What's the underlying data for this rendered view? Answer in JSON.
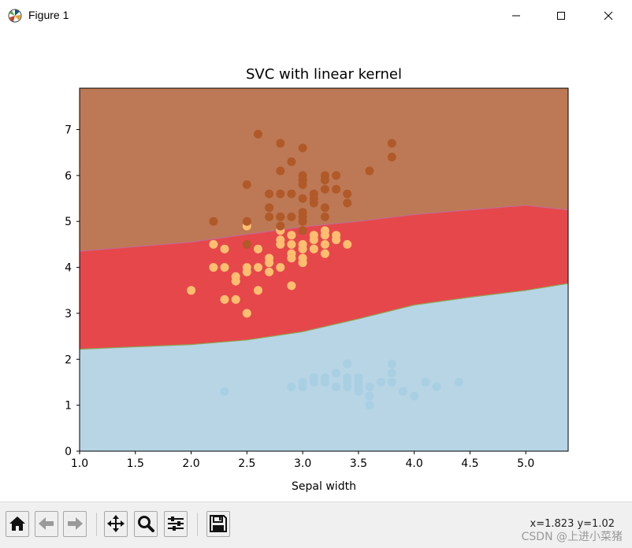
{
  "window": {
    "title": "Figure 1",
    "controls": [
      "minimize",
      "maximize",
      "close"
    ]
  },
  "toolbar": {
    "buttons": [
      {
        "name": "home",
        "icon": "home-icon"
      },
      {
        "name": "back",
        "icon": "arrow-left-icon"
      },
      {
        "name": "forward",
        "icon": "arrow-right-icon"
      },
      {
        "name": "pan",
        "icon": "move-icon"
      },
      {
        "name": "zoom",
        "icon": "magnifier-icon"
      },
      {
        "name": "configure-subplots",
        "icon": "sliders-icon"
      },
      {
        "name": "save",
        "icon": "floppy-disk-icon"
      }
    ],
    "coords": "x=1.823 y=1.02",
    "watermark": "CSDN @上进小菜猪"
  },
  "chart_data": {
    "type": "scatter",
    "title": "SVC with linear kernel",
    "xlabel": "Sepal width",
    "ylabel": "",
    "xlim": [
      1.0,
      5.38
    ],
    "ylim": [
      0,
      7.9
    ],
    "xticks": [
      "1.0",
      "1.5",
      "2.0",
      "2.5",
      "3.0",
      "3.5",
      "4.0",
      "4.5",
      "5.0"
    ],
    "yticks": [
      "0",
      "1",
      "2",
      "3",
      "4",
      "5",
      "6",
      "7"
    ],
    "regions": [
      {
        "name": "class-0-region",
        "color": "#b7d5e5"
      },
      {
        "name": "class-1-region",
        "color": "#e6474b"
      },
      {
        "name": "class-2-region",
        "color": "#bd7955"
      }
    ],
    "boundaries": {
      "lower": [
        [
          1.0,
          2.22
        ],
        [
          1.5,
          2.27
        ],
        [
          2.0,
          2.32
        ],
        [
          2.5,
          2.42
        ],
        [
          3.0,
          2.6
        ],
        [
          3.5,
          2.88
        ],
        [
          4.0,
          3.18
        ],
        [
          4.5,
          3.35
        ],
        [
          5.0,
          3.5
        ],
        [
          5.38,
          3.65
        ]
      ],
      "upper": [
        [
          1.0,
          4.35
        ],
        [
          1.5,
          4.45
        ],
        [
          2.0,
          4.55
        ],
        [
          2.5,
          4.72
        ],
        [
          3.0,
          4.88
        ],
        [
          3.5,
          5.0
        ],
        [
          4.0,
          5.15
        ],
        [
          4.5,
          5.25
        ],
        [
          5.0,
          5.35
        ],
        [
          5.38,
          5.25
        ]
      ]
    },
    "series": [
      {
        "name": "class-0",
        "color": "#a9cfe3",
        "points": [
          [
            2.3,
            1.3
          ],
          [
            2.9,
            1.4
          ],
          [
            3.0,
            1.4
          ],
          [
            3.0,
            1.5
          ],
          [
            3.1,
            1.5
          ],
          [
            3.1,
            1.6
          ],
          [
            3.2,
            1.6
          ],
          [
            3.2,
            1.5
          ],
          [
            3.3,
            1.4
          ],
          [
            3.3,
            1.7
          ],
          [
            3.4,
            1.5
          ],
          [
            3.4,
            1.6
          ],
          [
            3.4,
            1.4
          ],
          [
            3.5,
            1.3
          ],
          [
            3.5,
            1.5
          ],
          [
            3.5,
            1.4
          ],
          [
            3.6,
            1.4
          ],
          [
            3.6,
            1.2
          ],
          [
            3.7,
            1.5
          ],
          [
            3.8,
            1.5
          ],
          [
            3.8,
            1.7
          ],
          [
            3.9,
            1.3
          ],
          [
            4.0,
            1.2
          ],
          [
            4.1,
            1.5
          ],
          [
            4.2,
            1.4
          ],
          [
            4.4,
            1.5
          ],
          [
            3.6,
            1.0
          ],
          [
            3.5,
            1.6
          ],
          [
            3.7,
            1.5
          ],
          [
            3.8,
            1.9
          ],
          [
            3.4,
            1.9
          ],
          [
            3.1,
            1.5
          ]
        ]
      },
      {
        "name": "class-1",
        "color": "#fdbf6f",
        "points": [
          [
            2.0,
            3.5
          ],
          [
            2.2,
            4.0
          ],
          [
            2.2,
            4.5
          ],
          [
            2.3,
            3.3
          ],
          [
            2.3,
            4.0
          ],
          [
            2.3,
            4.4
          ],
          [
            2.4,
            3.3
          ],
          [
            2.4,
            3.7
          ],
          [
            2.4,
            3.8
          ],
          [
            2.5,
            3.0
          ],
          [
            2.5,
            3.9
          ],
          [
            2.5,
            4.0
          ],
          [
            2.5,
            4.9
          ],
          [
            2.6,
            3.5
          ],
          [
            2.6,
            4.0
          ],
          [
            2.6,
            4.4
          ],
          [
            2.7,
            3.9
          ],
          [
            2.7,
            4.1
          ],
          [
            2.7,
            4.2
          ],
          [
            2.8,
            4.0
          ],
          [
            2.8,
            4.5
          ],
          [
            2.8,
            4.6
          ],
          [
            2.8,
            4.8
          ],
          [
            2.9,
            3.6
          ],
          [
            2.9,
            4.2
          ],
          [
            2.9,
            4.3
          ],
          [
            2.9,
            4.5
          ],
          [
            2.9,
            4.7
          ],
          [
            3.0,
            4.1
          ],
          [
            3.0,
            4.2
          ],
          [
            3.0,
            4.5
          ],
          [
            3.0,
            4.4
          ],
          [
            3.1,
            4.4
          ],
          [
            3.1,
            4.7
          ],
          [
            3.2,
            4.5
          ],
          [
            3.2,
            4.7
          ],
          [
            3.2,
            4.8
          ],
          [
            3.3,
            4.7
          ],
          [
            3.4,
            4.5
          ],
          [
            3.2,
            4.3
          ],
          [
            3.1,
            4.6
          ],
          [
            3.3,
            4.6
          ]
        ]
      },
      {
        "name": "class-2",
        "color": "#b15928",
        "points": [
          [
            2.2,
            5.0
          ],
          [
            2.5,
            4.5
          ],
          [
            2.5,
            5.0
          ],
          [
            2.5,
            5.8
          ],
          [
            2.6,
            6.9
          ],
          [
            2.7,
            5.1
          ],
          [
            2.7,
            5.3
          ],
          [
            2.7,
            5.6
          ],
          [
            2.8,
            4.9
          ],
          [
            2.8,
            5.1
          ],
          [
            2.8,
            5.6
          ],
          [
            2.8,
            6.1
          ],
          [
            2.8,
            6.7
          ],
          [
            2.9,
            5.6
          ],
          [
            2.9,
            6.3
          ],
          [
            3.0,
            4.8
          ],
          [
            3.0,
            5.0
          ],
          [
            3.0,
            5.2
          ],
          [
            3.0,
            5.5
          ],
          [
            3.0,
            5.8
          ],
          [
            3.0,
            6.6
          ],
          [
            3.1,
            5.4
          ],
          [
            3.1,
            5.6
          ],
          [
            3.2,
            5.1
          ],
          [
            3.2,
            5.7
          ],
          [
            3.2,
            6.0
          ],
          [
            3.3,
            5.7
          ],
          [
            3.3,
            6.0
          ],
          [
            3.4,
            5.4
          ],
          [
            3.4,
            5.6
          ],
          [
            3.6,
            6.1
          ],
          [
            3.8,
            6.4
          ],
          [
            3.8,
            6.7
          ],
          [
            3.0,
            5.9
          ],
          [
            3.1,
            5.5
          ],
          [
            3.0,
            5.1
          ],
          [
            2.9,
            5.1
          ],
          [
            2.8,
            5.1
          ],
          [
            3.0,
            6.0
          ],
          [
            3.2,
            5.3
          ],
          [
            3.2,
            5.9
          ]
        ]
      }
    ]
  }
}
